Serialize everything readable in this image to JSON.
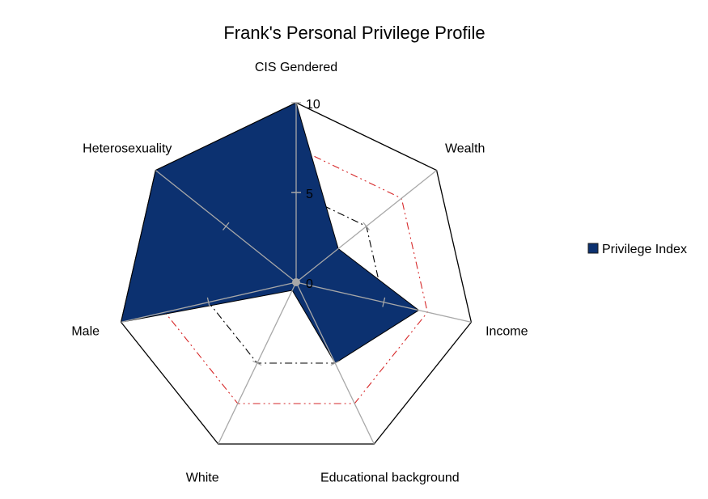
{
  "chart_data": {
    "type": "radar",
    "title": "Frank's Personal Privilege Profile",
    "categories": [
      "CIS Gendered",
      "Wealth",
      "Income",
      "Educational background",
      "White",
      "Male",
      "Heterosexuality"
    ],
    "series": [
      {
        "name": "Privilege Index",
        "values": [
          10,
          3,
          7,
          5,
          0.5,
          10,
          10
        ],
        "color": "#0c3170"
      }
    ],
    "reference_lines": [
      {
        "values": [
          5,
          5,
          5,
          5,
          5,
          5,
          5
        ],
        "color": "#000000",
        "style": "dash-dot"
      },
      {
        "values": [
          7.5,
          7.5,
          7.5,
          7.5,
          7.5,
          7.5,
          7.5
        ],
        "color": "#d62728",
        "style": "dash-dot-dot"
      }
    ],
    "ticks": [
      "0",
      "5",
      "10"
    ],
    "rmin": 0,
    "rmax": 10,
    "legend_position": "right",
    "grid": true
  }
}
